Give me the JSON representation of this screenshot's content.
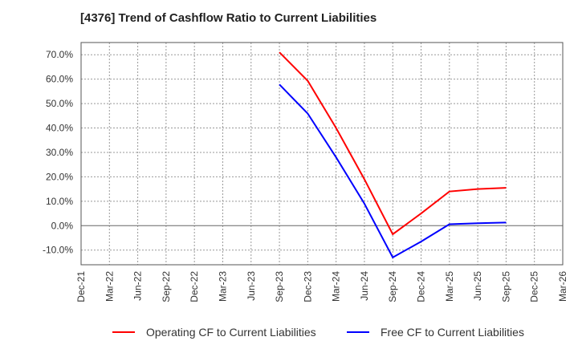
{
  "chart_data": {
    "type": "line",
    "title": "[4376]  Trend of Cashflow Ratio to Current Liabilities",
    "xlabel": "",
    "ylabel": "",
    "ylim": [
      -16,
      75
    ],
    "grid": true,
    "legend_position": "bottom",
    "x_ticks": [
      "Dec-21",
      "Mar-22",
      "Jun-22",
      "Sep-22",
      "Dec-22",
      "Mar-23",
      "Jun-23",
      "Sep-23",
      "Dec-23",
      "Mar-24",
      "Jun-24",
      "Sep-24",
      "Dec-24",
      "Mar-25",
      "Jun-25",
      "Sep-25",
      "Dec-25",
      "Mar-26"
    ],
    "y_ticks": [
      -10,
      0,
      10,
      20,
      30,
      40,
      50,
      60,
      70
    ],
    "y_tick_labels": [
      "-10.0%",
      "0.0%",
      "10.0%",
      "20.0%",
      "30.0%",
      "40.0%",
      "50.0%",
      "60.0%",
      "70.0%"
    ],
    "x": [
      "Sep-23",
      "Dec-23",
      "Mar-24",
      "Jun-24",
      "Sep-24",
      "Dec-24",
      "Mar-25",
      "Jun-25",
      "Sep-25"
    ],
    "series": [
      {
        "name": "Operating CF to Current Liabilities",
        "color": "#ff0000",
        "values": [
          71.0,
          59.3,
          40.0,
          19.0,
          -3.5,
          5.0,
          14.0,
          15.0,
          15.5
        ]
      },
      {
        "name": "Free CF to Current Liabilities",
        "color": "#0000ff",
        "values": [
          57.8,
          45.9,
          28.0,
          9.0,
          -13.0,
          -6.5,
          0.6,
          1.0,
          1.3
        ]
      }
    ]
  }
}
